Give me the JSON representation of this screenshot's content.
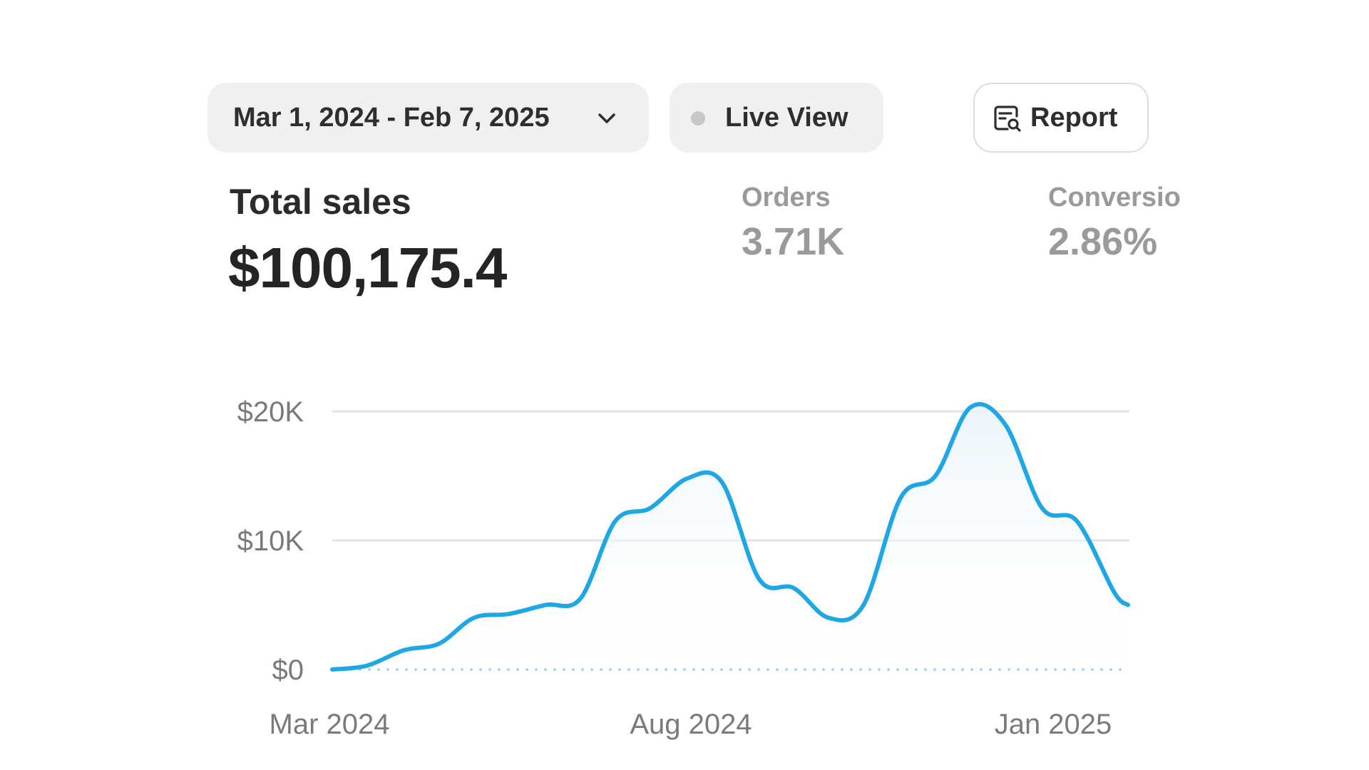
{
  "toolbar": {
    "date_range": "Mar 1, 2024 - Feb 7, 2025",
    "live_view": "Live View",
    "report": "Report"
  },
  "metrics": {
    "total_sales": {
      "label": "Total sales",
      "value": "$100,175.4"
    },
    "orders": {
      "label": "Orders",
      "value": "3.71K"
    },
    "conversion": {
      "label": "Conversio",
      "value": "2.86%"
    }
  },
  "icons": {
    "date_chevron": "chevron-down-icon",
    "live_dot": "status-dot-icon",
    "report": "report-search-icon"
  },
  "colors": {
    "line": "#1ea7e4",
    "grid": "#e3e3e3",
    "baseline": "#9fd3ec"
  },
  "chart_data": {
    "type": "line",
    "title": "",
    "xlabel": "",
    "ylabel": "",
    "ylim": [
      0,
      20000
    ],
    "yticks": [
      {
        "value": 0,
        "label": "$0"
      },
      {
        "value": 10000,
        "label": "$10K"
      },
      {
        "value": 20000,
        "label": "$20K"
      }
    ],
    "xticks": [
      {
        "x": "2024-03",
        "label": "Mar 2024"
      },
      {
        "x": "2024-08",
        "label": "Aug 2024"
      },
      {
        "x": "2025-01",
        "label": "Jan 2025"
      }
    ],
    "grid": true,
    "legend": "none",
    "series": [
      {
        "x": [
          "2024-03-01",
          "2024-03-16",
          "2024-04-01",
          "2024-04-16",
          "2024-05-01",
          "2024-05-16",
          "2024-06-01",
          "2024-06-16",
          "2024-07-01",
          "2024-07-16",
          "2024-08-01",
          "2024-08-16",
          "2024-09-01",
          "2024-09-16",
          "2024-10-01",
          "2024-10-16",
          "2024-11-01",
          "2024-11-16",
          "2024-12-01",
          "2024-12-16",
          "2025-01-01",
          "2025-01-16",
          "2025-02-01",
          "2025-02-07"
        ],
        "values": [
          0,
          300,
          1500,
          2000,
          4000,
          4300,
          5000,
          5500,
          11500,
          12500,
          14800,
          14500,
          7000,
          6300,
          4000,
          5000,
          13300,
          15000,
          20300,
          19000,
          12500,
          11500,
          6000,
          5000
        ]
      }
    ],
    "baseline_dotted": true
  }
}
